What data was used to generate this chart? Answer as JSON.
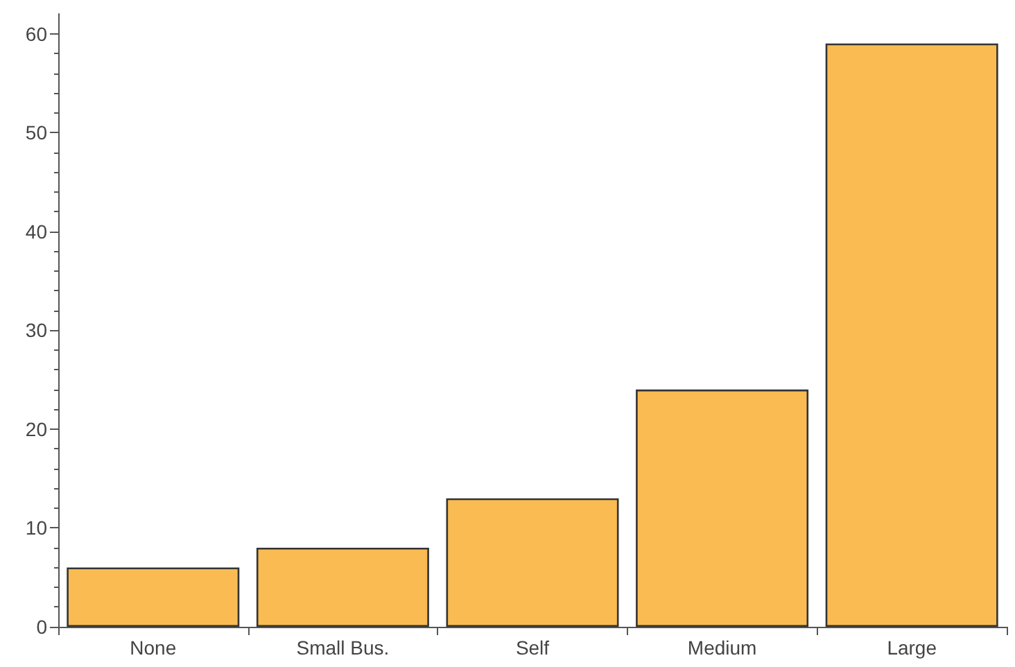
{
  "chart_data": {
    "type": "bar",
    "categories": [
      "None",
      "Small Bus.",
      "Self",
      "Medium",
      "Large"
    ],
    "values": [
      6,
      8,
      13,
      24,
      59
    ],
    "color": "#f9bb52",
    "ylim": [
      0,
      62
    ],
    "yticks": [
      0,
      10,
      20,
      30,
      40,
      50,
      60
    ],
    "grid": false
  }
}
